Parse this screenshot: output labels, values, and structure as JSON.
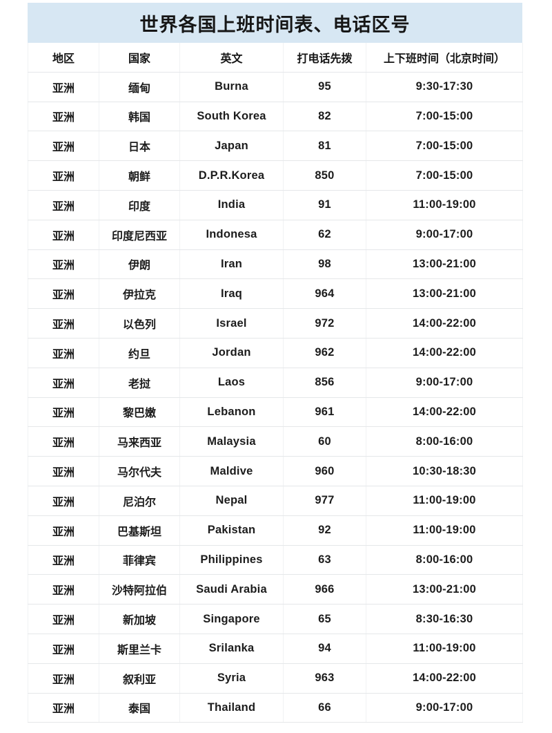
{
  "title": "世界各国上班时间表、电话区号",
  "theme": {
    "title_background": "#d7e7f3",
    "text_color": "#1c1c1c",
    "row_line_color": "#e5e7e9",
    "column_line_color": "#f0f2f4",
    "page_background": "#ffffff"
  },
  "table": {
    "headers": [
      "地区",
      "国家",
      "英文",
      "打电话先拨",
      "上下班时间（北京时间）"
    ],
    "rows": [
      [
        "亚洲",
        "缅甸",
        "Burna",
        "95",
        "9:30-17:30"
      ],
      [
        "亚洲",
        "韩国",
        "South Korea",
        "82",
        "7:00-15:00"
      ],
      [
        "亚洲",
        "日本",
        "Japan",
        "81",
        "7:00-15:00"
      ],
      [
        "亚洲",
        "朝鲜",
        "D.P.R.Korea",
        "850",
        "7:00-15:00"
      ],
      [
        "亚洲",
        "印度",
        "India",
        "91",
        "11:00-19:00"
      ],
      [
        "亚洲",
        "印度尼西亚",
        "Indonesa",
        "62",
        "9:00-17:00"
      ],
      [
        "亚洲",
        "伊朗",
        "Iran",
        "98",
        "13:00-21:00"
      ],
      [
        "亚洲",
        "伊拉克",
        "Iraq",
        "964",
        "13:00-21:00"
      ],
      [
        "亚洲",
        "以色列",
        "Israel",
        "972",
        "14:00-22:00"
      ],
      [
        "亚洲",
        "约旦",
        "Jordan",
        "962",
        "14:00-22:00"
      ],
      [
        "亚洲",
        "老挝",
        "Laos",
        "856",
        "9:00-17:00"
      ],
      [
        "亚洲",
        "黎巴嫩",
        "Lebanon",
        "961",
        "14:00-22:00"
      ],
      [
        "亚洲",
        "马来西亚",
        "Malaysia",
        "60",
        "8:00-16:00"
      ],
      [
        "亚洲",
        "马尔代夫",
        "Maldive",
        "960",
        "10:30-18:30"
      ],
      [
        "亚洲",
        "尼泊尔",
        "Nepal",
        "977",
        "11:00-19:00"
      ],
      [
        "亚洲",
        "巴基斯坦",
        "Pakistan",
        "92",
        "11:00-19:00"
      ],
      [
        "亚洲",
        "菲律宾",
        "Philippines",
        "63",
        "8:00-16:00"
      ],
      [
        "亚洲",
        "沙特阿拉伯",
        "Saudi Arabia",
        "966",
        "13:00-21:00"
      ],
      [
        "亚洲",
        "新加坡",
        "Singapore",
        "65",
        "8:30-16:30"
      ],
      [
        "亚洲",
        "斯里兰卡",
        "Srilanka",
        "94",
        "11:00-19:00"
      ],
      [
        "亚洲",
        "叙利亚",
        "Syria",
        "963",
        "14:00-22:00"
      ],
      [
        "亚洲",
        "泰国",
        "Thailand",
        "66",
        "9:00-17:00"
      ]
    ]
  }
}
